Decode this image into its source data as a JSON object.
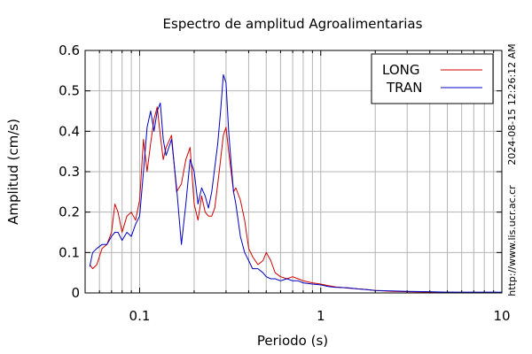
{
  "chart_data": {
    "type": "line",
    "title": "Espectro de amplitud Agroalimentarias",
    "xlabel": "Periodo (s)",
    "ylabel": "Amplitud (cm/s)",
    "x_scale": "log",
    "xlim": [
      0.05,
      10
    ],
    "ylim": [
      0,
      0.6
    ],
    "x_ticks": [
      "0.1",
      "1",
      "10"
    ],
    "y_ticks": [
      "0",
      "0.1",
      "0.2",
      "0.3",
      "0.4",
      "0.5",
      "0.6"
    ],
    "grid": true,
    "legend_position": "top-right",
    "side_notes": [
      "2024-08-15 12:26:12 AM",
      "http://www.lis.ucr.ac.cr"
    ],
    "series": [
      {
        "name": "LONG",
        "color": "#d00000",
        "x": [
          0.053,
          0.055,
          0.058,
          0.062,
          0.066,
          0.07,
          0.073,
          0.076,
          0.08,
          0.085,
          0.09,
          0.095,
          0.1,
          0.105,
          0.11,
          0.115,
          0.12,
          0.125,
          0.13,
          0.135,
          0.14,
          0.15,
          0.16,
          0.17,
          0.18,
          0.19,
          0.2,
          0.21,
          0.22,
          0.23,
          0.24,
          0.25,
          0.26,
          0.27,
          0.28,
          0.29,
          0.3,
          0.31,
          0.32,
          0.33,
          0.34,
          0.36,
          0.38,
          0.4,
          0.42,
          0.45,
          0.48,
          0.5,
          0.53,
          0.56,
          0.6,
          0.65,
          0.7,
          0.75,
          0.8,
          0.9,
          1.0,
          1.1,
          1.2,
          1.4,
          1.6,
          1.8,
          2.0,
          2.5,
          3.0,
          4.0,
          5.0,
          6.0,
          7.0,
          8.0,
          9.0,
          10.0
        ],
        "values": [
          0.07,
          0.06,
          0.07,
          0.11,
          0.12,
          0.15,
          0.22,
          0.2,
          0.15,
          0.19,
          0.2,
          0.18,
          0.23,
          0.38,
          0.3,
          0.37,
          0.43,
          0.46,
          0.39,
          0.33,
          0.36,
          0.39,
          0.25,
          0.27,
          0.33,
          0.36,
          0.22,
          0.18,
          0.24,
          0.2,
          0.19,
          0.19,
          0.21,
          0.27,
          0.33,
          0.39,
          0.41,
          0.35,
          0.3,
          0.25,
          0.26,
          0.23,
          0.18,
          0.11,
          0.09,
          0.07,
          0.08,
          0.1,
          0.08,
          0.05,
          0.04,
          0.035,
          0.04,
          0.035,
          0.03,
          0.025,
          0.022,
          0.018,
          0.015,
          0.012,
          0.01,
          0.008,
          0.006,
          0.004,
          0.003,
          0.002,
          0.002,
          0.001,
          0.001,
          0.001,
          0.001,
          0.001
        ]
      },
      {
        "name": "TRAN",
        "color": "#0000c0",
        "x": [
          0.053,
          0.055,
          0.058,
          0.062,
          0.066,
          0.07,
          0.073,
          0.076,
          0.08,
          0.085,
          0.09,
          0.095,
          0.1,
          0.105,
          0.11,
          0.115,
          0.12,
          0.125,
          0.13,
          0.135,
          0.14,
          0.15,
          0.16,
          0.17,
          0.18,
          0.19,
          0.2,
          0.21,
          0.22,
          0.23,
          0.24,
          0.25,
          0.26,
          0.27,
          0.28,
          0.29,
          0.3,
          0.31,
          0.32,
          0.33,
          0.34,
          0.36,
          0.38,
          0.4,
          0.42,
          0.45,
          0.48,
          0.5,
          0.53,
          0.56,
          0.6,
          0.65,
          0.7,
          0.75,
          0.8,
          0.9,
          1.0,
          1.1,
          1.2,
          1.4,
          1.6,
          1.8,
          2.0,
          2.5,
          3.0,
          4.0,
          5.0,
          6.0,
          7.0,
          8.0,
          9.0,
          10.0
        ],
        "values": [
          0.065,
          0.1,
          0.11,
          0.12,
          0.12,
          0.14,
          0.15,
          0.15,
          0.13,
          0.15,
          0.14,
          0.17,
          0.19,
          0.3,
          0.41,
          0.45,
          0.4,
          0.45,
          0.47,
          0.38,
          0.34,
          0.38,
          0.26,
          0.12,
          0.22,
          0.33,
          0.3,
          0.22,
          0.26,
          0.24,
          0.21,
          0.25,
          0.31,
          0.37,
          0.45,
          0.54,
          0.52,
          0.4,
          0.32,
          0.25,
          0.22,
          0.14,
          0.1,
          0.08,
          0.06,
          0.06,
          0.05,
          0.04,
          0.035,
          0.035,
          0.03,
          0.035,
          0.03,
          0.03,
          0.025,
          0.022,
          0.02,
          0.016,
          0.014,
          0.013,
          0.01,
          0.008,
          0.006,
          0.005,
          0.004,
          0.003,
          0.002,
          0.002,
          0.002,
          0.002,
          0.002,
          0.002
        ]
      }
    ]
  }
}
